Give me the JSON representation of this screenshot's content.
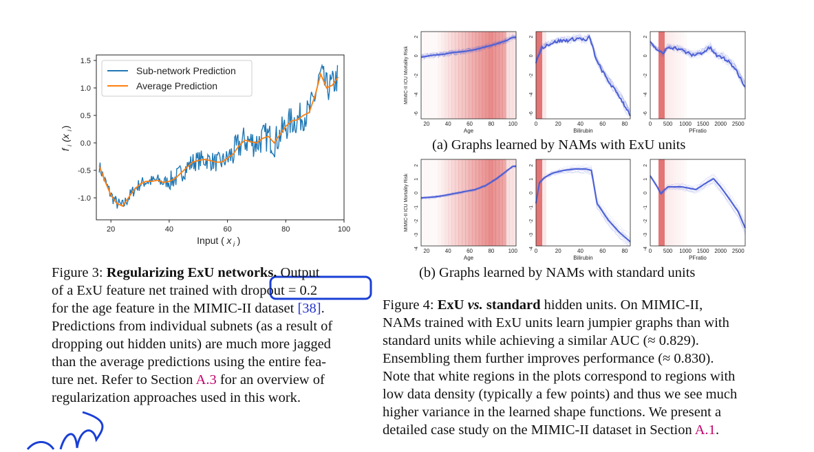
{
  "figure3": {
    "chart_data": {
      "type": "line",
      "xlabel": "Input (x_i)",
      "ylabel": "f_i(x_i)",
      "xlim": [
        15,
        100
      ],
      "ylim": [
        -1.4,
        1.6
      ],
      "xticks": [
        20,
        40,
        60,
        80,
        100
      ],
      "yticks": [
        1.5,
        1.0,
        0.5,
        0.0,
        -0.5,
        -1.0
      ],
      "legend": [
        "Sub-network Prediction",
        "Average Prediction"
      ],
      "series": [
        {
          "name": "Average Prediction",
          "x": [
            16,
            18,
            20,
            22,
            24,
            26,
            28,
            30,
            32,
            34,
            36,
            38,
            40,
            42,
            44,
            46,
            48,
            50,
            52,
            54,
            56,
            58,
            60,
            62,
            64,
            66,
            68,
            70,
            72,
            74,
            76,
            78,
            80,
            82,
            84,
            86,
            88,
            90,
            92,
            94,
            96,
            98
          ],
          "y": [
            -0.42,
            -0.7,
            -0.95,
            -1.1,
            -1.15,
            -1.0,
            -0.85,
            -0.75,
            -0.7,
            -0.7,
            -0.68,
            -0.72,
            -0.7,
            -0.65,
            -0.55,
            -0.45,
            -0.35,
            -0.32,
            -0.3,
            -0.32,
            -0.35,
            -0.35,
            -0.28,
            -0.2,
            -0.05,
            0.05,
            0.02,
            0.0,
            0.08,
            0.12,
            0.0,
            0.15,
            0.3,
            0.4,
            0.42,
            0.5,
            0.55,
            0.85,
            1.25,
            1.0,
            1.05,
            1.2
          ]
        }
      ]
    },
    "caption": {
      "line1_label": "Figure 3:",
      "line1_bold": "Regularizing ExU networks.",
      "line1_rest": "Output",
      "line2_a": "of a ExU feature net trained with",
      "line2_boxed": "dropout = 0.2",
      "line3_a": "for the age feature in the MIMIC-II dataset",
      "line3_ref": "[38]",
      "line3_end": ".",
      "line4": "Predictions from individual subnets (as a result of",
      "line5": "dropping out hidden units) are much more jagged",
      "line6": "than the average predictions using the entire fea-",
      "line7_a": "ture net. Refer to Section",
      "line7_ref": "A.3",
      "line7_b": "for an overview of",
      "line8": "regularization approaches used in this work."
    }
  },
  "figure4": {
    "chart_data": [
      {
        "type": "line",
        "panel": "a1",
        "xlabel": "Age",
        "ylabel": "MIMIC-II ICU Mortality Risk",
        "xticks": [
          20,
          40,
          60,
          80,
          100
        ],
        "yticks": [
          2,
          0,
          -2,
          -4,
          -6
        ],
        "x": [
          15,
          25,
          35,
          45,
          55,
          65,
          75,
          85,
          95,
          100
        ],
        "y": [
          -0.5,
          -0.3,
          -0.2,
          0.0,
          0.1,
          0.3,
          0.6,
          0.9,
          1.3,
          1.6
        ]
      },
      {
        "type": "line",
        "panel": "a2",
        "xlabel": "Bilirubin",
        "xticks": [
          0,
          20,
          40,
          60,
          80
        ],
        "yticks": [
          2,
          0,
          -2,
          -4,
          -6
        ],
        "x": [
          0,
          5,
          10,
          20,
          30,
          40,
          45,
          48,
          50,
          55,
          65,
          75,
          85
        ],
        "y": [
          -1.0,
          0.5,
          0.8,
          1.2,
          1.3,
          1.5,
          1.2,
          1.6,
          1.0,
          -1.0,
          -3.0,
          -4.6,
          -6.6
        ]
      },
      {
        "type": "line",
        "panel": "a3",
        "xlabel": "PFratio",
        "xticks": [
          0,
          500,
          1000,
          1500,
          2000,
          2500
        ],
        "yticks": [
          2,
          0,
          -2,
          -4,
          -6
        ],
        "x": [
          0,
          200,
          350,
          500,
          800,
          1200,
          1500,
          1700,
          1900,
          2100,
          2400,
          2700
        ],
        "y": [
          1.0,
          0.3,
          -0.2,
          0.6,
          0.4,
          -0.3,
          0.0,
          0.5,
          -0.4,
          -0.6,
          -1.6,
          -3.6
        ]
      },
      {
        "type": "line",
        "panel": "b1",
        "xlabel": "Age",
        "ylabel": "MIMIC-II ICU Mortality Risk",
        "xticks": [
          20,
          40,
          60,
          80,
          100
        ],
        "yticks": [
          2,
          1,
          0,
          -1,
          -2,
          -3,
          -4
        ],
        "x": [
          15,
          25,
          35,
          45,
          55,
          65,
          75,
          85,
          95,
          100
        ],
        "y": [
          -0.6,
          -0.55,
          -0.45,
          -0.3,
          -0.15,
          0.0,
          0.3,
          0.8,
          1.4,
          1.7
        ]
      },
      {
        "type": "line",
        "panel": "b2",
        "xlabel": "Bilirubin",
        "xticks": [
          0,
          20,
          40,
          60,
          80
        ],
        "yticks": [
          2,
          1,
          0,
          -1,
          -2,
          -3,
          -4
        ],
        "x": [
          0,
          3,
          8,
          15,
          25,
          35,
          45,
          50,
          55,
          65,
          75,
          85
        ],
        "y": [
          -1.0,
          0.5,
          0.9,
          1.2,
          1.4,
          1.5,
          1.5,
          1.4,
          -1.0,
          -2.2,
          -3.1,
          -3.8
        ]
      },
      {
        "type": "line",
        "panel": "b3",
        "xlabel": "PFratio",
        "xticks": [
          0,
          500,
          1000,
          1500,
          2000,
          2500
        ],
        "yticks": [
          2,
          1,
          0,
          -1,
          -2,
          -3,
          -4
        ],
        "x": [
          0,
          200,
          300,
          500,
          900,
          1300,
          1600,
          1800,
          2000,
          2200,
          2500,
          2700
        ],
        "y": [
          1.0,
          0.2,
          -0.3,
          0.2,
          0.2,
          0.0,
          0.5,
          0.8,
          0.2,
          -0.5,
          -1.6,
          -2.8
        ]
      }
    ],
    "subcap_a": "(a) Graphs learned by NAMs with ExU units",
    "subcap_b": "(b) Graphs learned by NAMs with standard units",
    "caption": {
      "line1_label": "Figure 4:",
      "line1_bold1": "ExU",
      "line1_vs": "vs.",
      "line1_bold2": "standard",
      "line1_rest": "hidden units. On MIMIC-II,",
      "line2": "NAMs trained with ExU units learn jumpier graphs than with",
      "line3": "standard units while achieving a similar AUC (≈ 0.829).",
      "line4": "Ensembling them further improves performance (≈ 0.830).",
      "line5": "Note that white regions in the plots correspond to regions with",
      "line6": "low data density (typically a few points) and thus we see much",
      "line7": "higher variance in the learned shape functions. We present a",
      "line8_a": "detailed case study on the MIMIC-II dataset in Section",
      "line8_ref": "A.1",
      "line8_b": "."
    }
  },
  "colors": {
    "subnet": "#1f77b4",
    "average": "#ff7f0e",
    "nam_line": "#4b5fd6",
    "density": "#e06666",
    "annotation": "#1a3fd6",
    "ref": "#c0006a"
  }
}
